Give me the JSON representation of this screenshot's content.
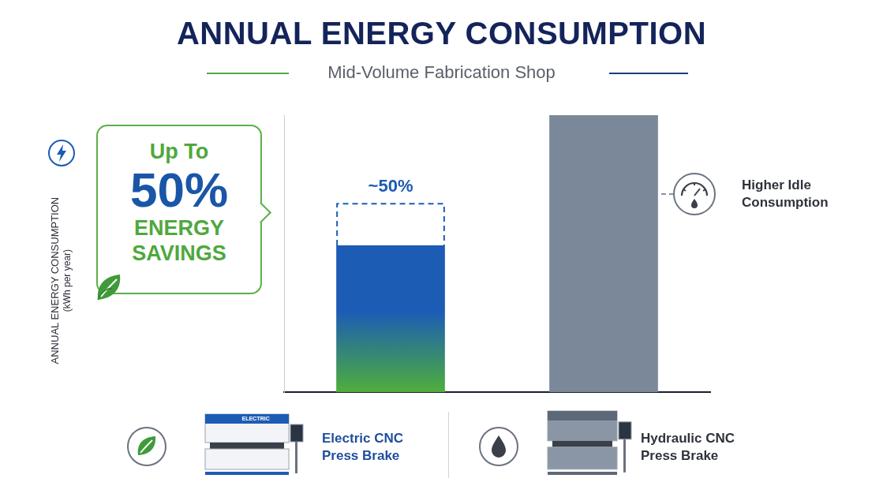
{
  "chart_data": {
    "type": "bar",
    "title": "ANNUAL ENERGY CONSUMPTION",
    "subtitle": "Mid-Volume Fabrication Shop",
    "y_label": "ANNUAL ENERGY CONSUMPTION",
    "y_unit_label": "(kWh per year)",
    "categories": [
      "Electric CNC Press Brake",
      "Hydraulic CNC Press Brake"
    ],
    "values": [
      53,
      100
    ],
    "savings": [
      15,
      null
    ],
    "savings_label": "~50%",
    "colors": [
      "#1c5cb5",
      "#7b8899"
    ],
    "ylim": [
      0,
      100
    ],
    "yticks": [],
    "grid": false,
    "tick_labels": false,
    "callout": [
      "Up To",
      "50%",
      "ENERGY",
      "SAVINGS"
    ],
    "idle_note": "Higher Idle Consumption",
    "machine_badge": "ELECTRIC"
  }
}
